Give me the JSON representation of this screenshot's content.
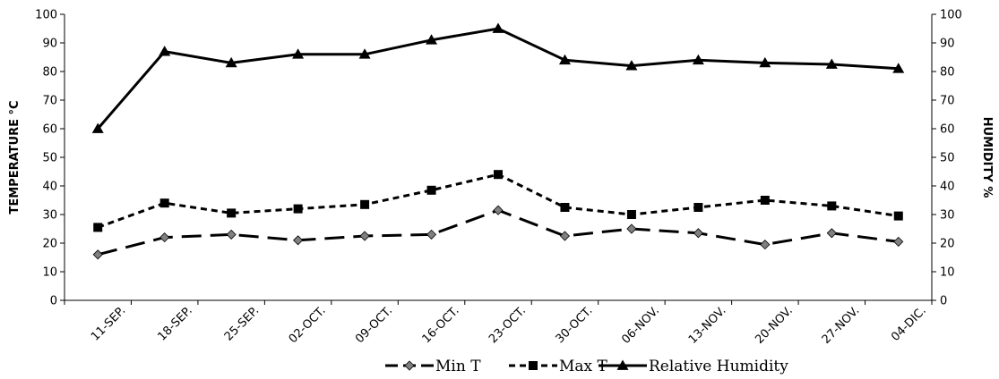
{
  "chart_data": {
    "type": "line",
    "categories": [
      "11-SEP.",
      "18-SEP.",
      "25-SEP.",
      "02-OCT.",
      "09-OCT.",
      "16-OCT.",
      "23-OCT.",
      "30-OCT.",
      "06-NOV.",
      "13-NOV.",
      "20-NOV.",
      "27-NOV.",
      "04-DIC."
    ],
    "series": [
      {
        "name": "Min T",
        "axis": "left",
        "marker": "diamond",
        "line_style": "long-dash",
        "marker_color": "#808080",
        "values": [
          16,
          22,
          23,
          21,
          22.5,
          23,
          31.5,
          22.5,
          25,
          23.5,
          19.5,
          23.5,
          20.5
        ]
      },
      {
        "name": "Max T",
        "axis": "left",
        "marker": "square",
        "line_style": "short-dash",
        "marker_color": "#000000",
        "values": [
          25.5,
          34,
          30.5,
          32,
          33.5,
          38.5,
          44,
          32.5,
          30,
          32.5,
          35,
          33,
          29.5
        ]
      },
      {
        "name": "Relative Humidity",
        "axis": "right",
        "marker": "triangle",
        "line_style": "solid",
        "marker_color": "#000000",
        "values": [
          60,
          87,
          83,
          86,
          86,
          91,
          95,
          84,
          82,
          84,
          83,
          82.5,
          81
        ]
      }
    ],
    "ylabel": "TEMPERATURE °C",
    "y2label": "HUMIDITY %",
    "ylim": [
      0,
      100
    ],
    "y2lim": [
      0,
      100
    ],
    "yticks": [
      "0",
      "10",
      "20",
      "30",
      "40",
      "50",
      "60",
      "70",
      "80",
      "90",
      "100"
    ],
    "y2ticks": [
      "0",
      "10",
      "20",
      "30",
      "40",
      "50",
      "60",
      "70",
      "80",
      "90",
      "100"
    ],
    "grid": false,
    "legend_position": "bottom"
  }
}
